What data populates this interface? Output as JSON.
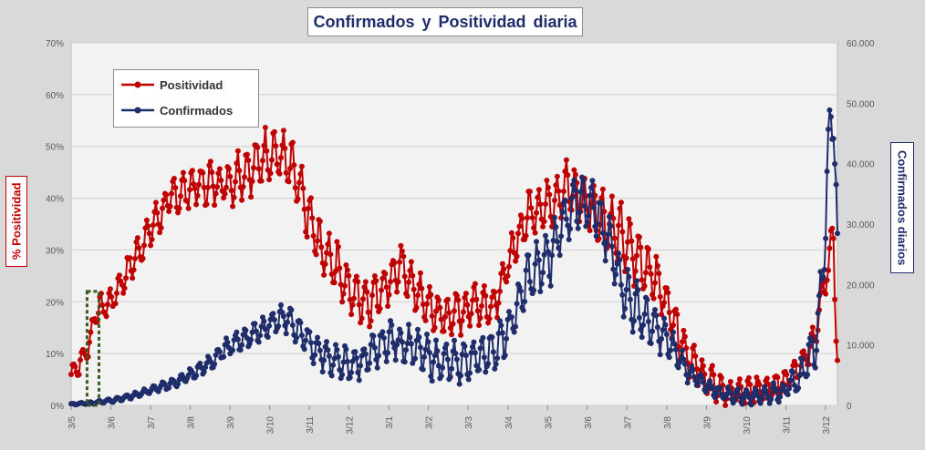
{
  "chart_data": {
    "type": "line",
    "title": "Confirmados  y Positividad  diaria",
    "ylabel_left": "% Positividad",
    "ylabel_right": "Confirmados diarios",
    "y_left_range": [
      0,
      0.7
    ],
    "y_left_ticks": [
      "0%",
      "10%",
      "20%",
      "30%",
      "40%",
      "50%",
      "60%",
      "70%"
    ],
    "y_right_range": [
      0,
      60000
    ],
    "y_right_ticks": [
      "0",
      "10.000",
      "20.000",
      "30.000",
      "40.000",
      "50.000",
      "60.000"
    ],
    "x_ticks": [
      "3/5",
      "3/6",
      "3/7",
      "3/8",
      "3/9",
      "3/10",
      "3/11",
      "3/12",
      "3/1",
      "3/2",
      "3/3",
      "3/4",
      "3/5",
      "3/6",
      "3/7",
      "3/8",
      "3/9",
      "3/10",
      "3/11",
      "3/12"
    ],
    "x_range_months": [
      0,
      19.3
    ],
    "grid": "horizontal",
    "legend_position": "top-left",
    "colors": {
      "positividad": "#c00000",
      "confirmados": "#1f2d6b",
      "highlight": "#3a5a1f"
    },
    "highlight_box": {
      "x_start_month": 0.4,
      "x_end_month": 0.7,
      "y_top_pct": 0.22
    },
    "series": [
      {
        "name": "Positividad",
        "axis": "left",
        "amplitude_keypoints": [
          [
            0,
            0.02
          ],
          [
            5,
            0.05
          ],
          [
            6,
            0.05
          ],
          [
            8,
            0.04
          ],
          [
            11,
            0.04
          ],
          [
            14,
            0.06
          ],
          [
            16,
            0.03
          ],
          [
            18,
            0.02
          ],
          [
            19.3,
            0.04
          ]
        ],
        "trend_keypoints": [
          [
            0,
            0.06
          ],
          [
            0.3,
            0.09
          ],
          [
            0.5,
            0.13
          ],
          [
            0.6,
            0.18
          ],
          [
            1.0,
            0.2
          ],
          [
            1.5,
            0.27
          ],
          [
            2.0,
            0.34
          ],
          [
            2.5,
            0.4
          ],
          [
            3.0,
            0.42
          ],
          [
            3.5,
            0.43
          ],
          [
            4.0,
            0.43
          ],
          [
            4.3,
            0.45
          ],
          [
            4.6,
            0.46
          ],
          [
            5.0,
            0.49
          ],
          [
            5.3,
            0.48
          ],
          [
            5.6,
            0.45
          ],
          [
            6.0,
            0.36
          ],
          [
            6.3,
            0.3
          ],
          [
            6.7,
            0.27
          ],
          [
            7.0,
            0.22
          ],
          [
            7.5,
            0.2
          ],
          [
            8.0,
            0.24
          ],
          [
            8.3,
            0.27
          ],
          [
            8.7,
            0.22
          ],
          [
            9.0,
            0.19
          ],
          [
            9.4,
            0.17
          ],
          [
            9.8,
            0.18
          ],
          [
            10.2,
            0.2
          ],
          [
            10.6,
            0.19
          ],
          [
            11.0,
            0.27
          ],
          [
            11.5,
            0.37
          ],
          [
            12.0,
            0.39
          ],
          [
            12.5,
            0.42
          ],
          [
            13.0,
            0.39
          ],
          [
            13.4,
            0.36
          ],
          [
            13.8,
            0.33
          ],
          [
            14.2,
            0.29
          ],
          [
            14.6,
            0.26
          ],
          [
            15.0,
            0.2
          ],
          [
            15.5,
            0.1
          ],
          [
            16.0,
            0.05
          ],
          [
            16.5,
            0.025
          ],
          [
            17.0,
            0.025
          ],
          [
            17.5,
            0.035
          ],
          [
            18.0,
            0.05
          ],
          [
            18.3,
            0.07
          ],
          [
            18.7,
            0.12
          ],
          [
            19.0,
            0.24
          ],
          [
            19.2,
            0.33
          ],
          [
            19.3,
            0.08
          ]
        ],
        "marker_size": 3
      },
      {
        "name": "Confirmados",
        "axis": "right",
        "amplitude_keypoints": [
          [
            0,
            100
          ],
          [
            2,
            500
          ],
          [
            4,
            1500
          ],
          [
            6,
            2500
          ],
          [
            8,
            3000
          ],
          [
            11,
            3500
          ],
          [
            12,
            5000
          ],
          [
            14,
            4500
          ],
          [
            16,
            1000
          ],
          [
            18,
            1500
          ],
          [
            19.3,
            6000
          ]
        ],
        "trend_keypoints": [
          [
            0,
            200
          ],
          [
            0.5,
            400
          ],
          [
            1.0,
            800
          ],
          [
            1.5,
            1500
          ],
          [
            2.0,
            2500
          ],
          [
            2.5,
            3500
          ],
          [
            3.0,
            5000
          ],
          [
            3.5,
            7000
          ],
          [
            4.0,
            10000
          ],
          [
            4.5,
            11500
          ],
          [
            5.0,
            13500
          ],
          [
            5.4,
            14500
          ],
          [
            5.8,
            12000
          ],
          [
            6.2,
            9000
          ],
          [
            6.6,
            7500
          ],
          [
            7.0,
            6500
          ],
          [
            7.5,
            8000
          ],
          [
            8.0,
            11000
          ],
          [
            8.5,
            10000
          ],
          [
            9.0,
            8000
          ],
          [
            9.4,
            7000
          ],
          [
            9.8,
            7000
          ],
          [
            10.2,
            8000
          ],
          [
            10.7,
            9500
          ],
          [
            11.0,
            12000
          ],
          [
            11.5,
            21000
          ],
          [
            12.0,
            24000
          ],
          [
            12.5,
            32000
          ],
          [
            12.8,
            35000
          ],
          [
            13.2,
            32000
          ],
          [
            13.6,
            26000
          ],
          [
            14.0,
            18000
          ],
          [
            14.5,
            14000
          ],
          [
            15.0,
            11000
          ],
          [
            15.5,
            6000
          ],
          [
            16.0,
            3000
          ],
          [
            16.5,
            1800
          ],
          [
            17.0,
            1500
          ],
          [
            17.5,
            1800
          ],
          [
            18.0,
            2500
          ],
          [
            18.4,
            5000
          ],
          [
            18.8,
            12000
          ],
          [
            19.0,
            30000
          ],
          [
            19.1,
            45000
          ],
          [
            19.2,
            50000
          ],
          [
            19.25,
            40000
          ],
          [
            19.3,
            24000
          ]
        ],
        "marker_size": 3
      }
    ]
  }
}
